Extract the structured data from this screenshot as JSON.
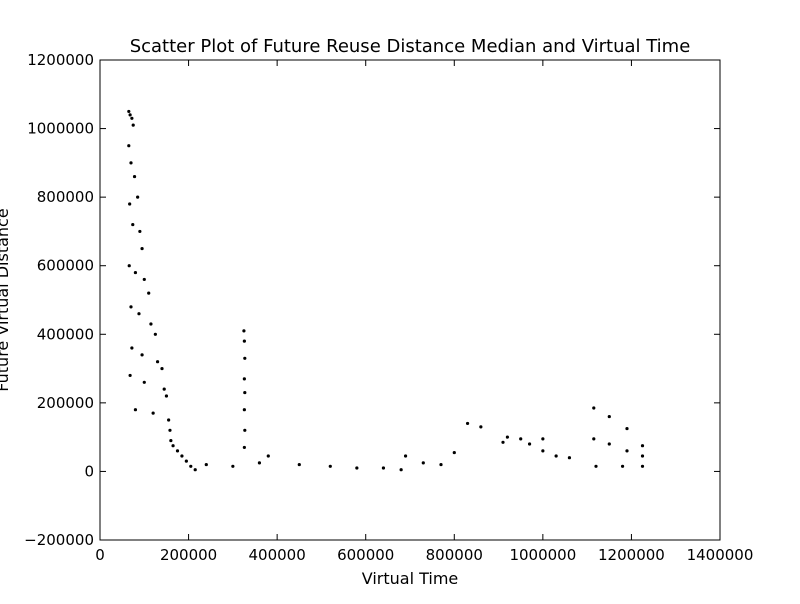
{
  "chart_data": {
    "type": "scatter",
    "title": "Scatter Plot of Future Reuse Distance Median and Virtual Time",
    "xlabel": "Virtual Time",
    "ylabel": "Future Virtual Distance",
    "xlim": [
      0,
      1400000
    ],
    "ylim": [
      -200000,
      1200000
    ],
    "xticks": [
      0,
      200000,
      400000,
      600000,
      800000,
      1000000,
      1200000,
      1400000
    ],
    "yticks": [
      -200000,
      0,
      200000,
      400000,
      600000,
      800000,
      1000000,
      1200000
    ],
    "xtick_labels": [
      "0",
      "200000",
      "400000",
      "600000",
      "800000",
      "1000000",
      "1200000",
      "1400000"
    ],
    "ytick_labels": [
      "−200000",
      "0",
      "200000",
      "400000",
      "600000",
      "800000",
      "1000000",
      "1200000"
    ],
    "grid": false,
    "legend": "none",
    "marker_color": "#000000",
    "series": [
      {
        "points": [
          [
            65000,
            1050000
          ],
          [
            68000,
            1040000
          ],
          [
            72000,
            1030000
          ],
          [
            75000,
            1010000
          ],
          [
            65000,
            950000
          ],
          [
            70000,
            900000
          ],
          [
            78000,
            860000
          ],
          [
            85000,
            800000
          ],
          [
            67000,
            780000
          ],
          [
            74000,
            720000
          ],
          [
            90000,
            700000
          ],
          [
            95000,
            650000
          ],
          [
            66000,
            600000
          ],
          [
            80000,
            580000
          ],
          [
            100000,
            560000
          ],
          [
            110000,
            520000
          ],
          [
            70000,
            480000
          ],
          [
            88000,
            460000
          ],
          [
            115000,
            430000
          ],
          [
            125000,
            400000
          ],
          [
            72000,
            360000
          ],
          [
            95000,
            340000
          ],
          [
            130000,
            320000
          ],
          [
            140000,
            300000
          ],
          [
            68000,
            280000
          ],
          [
            100000,
            260000
          ],
          [
            145000,
            240000
          ],
          [
            150000,
            220000
          ],
          [
            80000,
            180000
          ],
          [
            120000,
            170000
          ],
          [
            155000,
            150000
          ],
          [
            158000,
            120000
          ],
          [
            160000,
            90000
          ],
          [
            165000,
            75000
          ],
          [
            175000,
            60000
          ],
          [
            185000,
            45000
          ],
          [
            195000,
            30000
          ],
          [
            205000,
            15000
          ],
          [
            215000,
            5000
          ],
          [
            325000,
            410000
          ],
          [
            326000,
            380000
          ],
          [
            327000,
            330000
          ],
          [
            326000,
            270000
          ],
          [
            327000,
            230000
          ],
          [
            326000,
            180000
          ],
          [
            327000,
            120000
          ],
          [
            326000,
            70000
          ],
          [
            830000,
            140000
          ],
          [
            860000,
            130000
          ],
          [
            920000,
            100000
          ],
          [
            950000,
            95000
          ],
          [
            1000000,
            95000
          ],
          [
            910000,
            85000
          ],
          [
            970000,
            80000
          ],
          [
            1115000,
            185000
          ],
          [
            1150000,
            160000
          ],
          [
            1190000,
            125000
          ],
          [
            1225000,
            75000
          ],
          [
            1115000,
            95000
          ],
          [
            1150000,
            80000
          ],
          [
            1190000,
            60000
          ],
          [
            1225000,
            45000
          ],
          [
            1000000,
            60000
          ],
          [
            1030000,
            45000
          ],
          [
            1060000,
            40000
          ],
          [
            730000,
            25000
          ],
          [
            770000,
            20000
          ],
          [
            800000,
            55000
          ],
          [
            690000,
            45000
          ],
          [
            240000,
            20000
          ],
          [
            300000,
            15000
          ],
          [
            360000,
            25000
          ],
          [
            380000,
            45000
          ],
          [
            450000,
            20000
          ],
          [
            520000,
            15000
          ],
          [
            580000,
            10000
          ],
          [
            640000,
            10000
          ],
          [
            680000,
            5000
          ],
          [
            1120000,
            15000
          ],
          [
            1180000,
            15000
          ],
          [
            1225000,
            15000
          ]
        ]
      }
    ]
  }
}
